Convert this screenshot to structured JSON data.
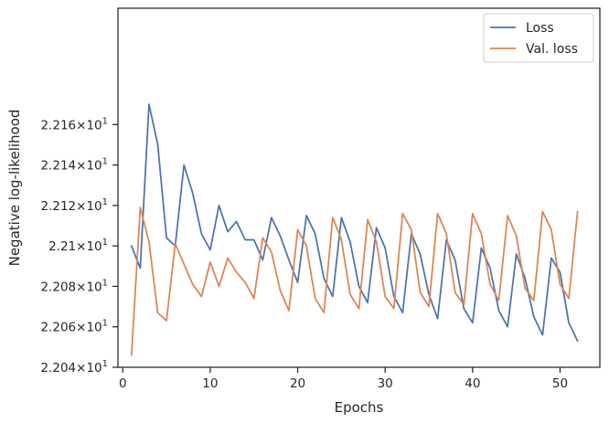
{
  "chart_data": {
    "type": "line",
    "xlabel": "Epochs",
    "ylabel": "Negative log-likelihood",
    "xlim": [
      -0.55,
      54.55
    ],
    "ylim": [
      22.04,
      22.2175
    ],
    "x_ticks": [
      0,
      10,
      20,
      30,
      40,
      50
    ],
    "y_ticks": [
      {
        "value": 22.04,
        "mantissa": "2.204",
        "exponent": "1"
      },
      {
        "value": 22.06,
        "mantissa": "2.206",
        "exponent": "1"
      },
      {
        "value": 22.08,
        "mantissa": "2.208",
        "exponent": "1"
      },
      {
        "value": 22.1,
        "mantissa": "2.21",
        "exponent": "1"
      },
      {
        "value": 22.12,
        "mantissa": "2.212",
        "exponent": "1"
      },
      {
        "value": 22.14,
        "mantissa": "2.214",
        "exponent": "1"
      },
      {
        "value": 22.16,
        "mantissa": "2.216",
        "exponent": "1"
      }
    ],
    "y_tick_times": "×",
    "y_tick_base": "10",
    "grid": false,
    "legend_position": "top-right",
    "x": [
      1,
      2,
      3,
      4,
      5,
      6,
      7,
      8,
      9,
      10,
      11,
      12,
      13,
      14,
      15,
      16,
      17,
      18,
      19,
      20,
      21,
      22,
      23,
      24,
      25,
      26,
      27,
      28,
      29,
      30,
      31,
      32,
      33,
      34,
      35,
      36,
      37,
      38,
      39,
      40,
      41,
      42,
      43,
      44,
      45,
      46,
      47,
      48,
      49,
      50,
      51,
      52
    ],
    "series": [
      {
        "name": "Loss",
        "color": "#4c72b0",
        "values": [
          22.1,
          22.089,
          22.17,
          22.15,
          22.104,
          22.1,
          22.14,
          22.126,
          22.106,
          22.098,
          22.12,
          22.107,
          22.112,
          22.103,
          22.103,
          22.093,
          22.114,
          22.105,
          22.093,
          22.082,
          22.115,
          22.106,
          22.084,
          22.075,
          22.114,
          22.102,
          22.08,
          22.072,
          22.109,
          22.099,
          22.075,
          22.067,
          22.106,
          22.096,
          22.076,
          22.064,
          22.103,
          22.093,
          22.069,
          22.062,
          22.099,
          22.089,
          22.068,
          22.06,
          22.096,
          22.084,
          22.065,
          22.056,
          22.094,
          22.087,
          22.062,
          22.053
        ]
      },
      {
        "name": "Val. loss",
        "color": "#dd8452",
        "values": [
          22.046,
          22.119,
          22.102,
          22.067,
          22.063,
          22.101,
          22.091,
          22.081,
          22.075,
          22.092,
          22.08,
          22.094,
          22.087,
          22.082,
          22.074,
          22.104,
          22.097,
          22.078,
          22.068,
          22.108,
          22.1,
          22.074,
          22.067,
          22.114,
          22.103,
          22.076,
          22.069,
          22.113,
          22.102,
          22.075,
          22.069,
          22.116,
          22.108,
          22.077,
          22.07,
          22.116,
          22.106,
          22.077,
          22.071,
          22.116,
          22.106,
          22.081,
          22.073,
          22.115,
          22.105,
          22.079,
          22.073,
          22.117,
          22.108,
          22.081,
          22.074,
          22.117
        ]
      }
    ]
  }
}
